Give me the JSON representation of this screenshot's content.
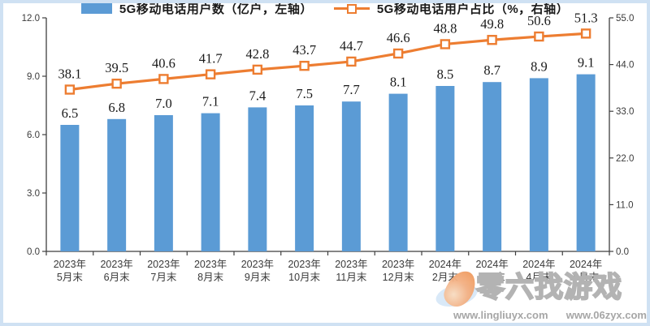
{
  "frame": {
    "border_color": "#cfe1f3"
  },
  "chart_data": {
    "type": "combo_bar_line",
    "title": "",
    "categories": [
      "2023年5月末",
      "2023年6月末",
      "2023年7月末",
      "2023年8月末",
      "2023年9月末",
      "2023年10月末",
      "2023年11月末",
      "2023年12月末",
      "2024年2月末",
      "2024年3月末",
      "2024年4月末",
      "2024年5月末"
    ],
    "category_lines": [
      [
        "2023年",
        "5月末"
      ],
      [
        "2023年",
        "6月末"
      ],
      [
        "2023年",
        "7月末"
      ],
      [
        "2023年",
        "8月末"
      ],
      [
        "2023年",
        "9月末"
      ],
      [
        "2023年",
        "10月末"
      ],
      [
        "2023年",
        "11月末"
      ],
      [
        "2023年",
        "12月末"
      ],
      [
        "2024年",
        "2月末"
      ],
      [
        "2024年",
        "3月末"
      ],
      [
        "2024年",
        "4月末"
      ],
      [
        "2024年",
        "5月末"
      ]
    ],
    "series": [
      {
        "name": "5G移动电话用户数（亿户，左轴）",
        "type": "bar",
        "axis": "left",
        "color": "#5B9BD5",
        "values": [
          6.5,
          6.8,
          7.0,
          7.1,
          7.4,
          7.5,
          7.7,
          8.1,
          8.5,
          8.7,
          8.9,
          9.1
        ]
      },
      {
        "name": "5G移动电话用户占比（%，右轴）",
        "type": "line",
        "axis": "right",
        "color": "#ED7D31",
        "marker": "open-square",
        "values": [
          38.1,
          39.5,
          40.6,
          41.7,
          42.8,
          43.7,
          44.7,
          46.6,
          48.8,
          49.8,
          50.6,
          51.3
        ]
      }
    ],
    "left_axis": {
      "min": 0,
      "max": 12,
      "ticks": [
        0.0,
        3.0,
        6.0,
        9.0,
        12.0
      ]
    },
    "right_axis": {
      "min": 0,
      "max": 55,
      "ticks": [
        0.0,
        11.0,
        22.0,
        33.0,
        44.0,
        55.0
      ]
    },
    "gridlines": false,
    "data_labels": true,
    "legend_position": "bottom"
  },
  "watermark": {
    "brand": "零六找游戏",
    "urls": [
      "www.lingliuyx.com",
      "www.06zyx.com"
    ]
  }
}
